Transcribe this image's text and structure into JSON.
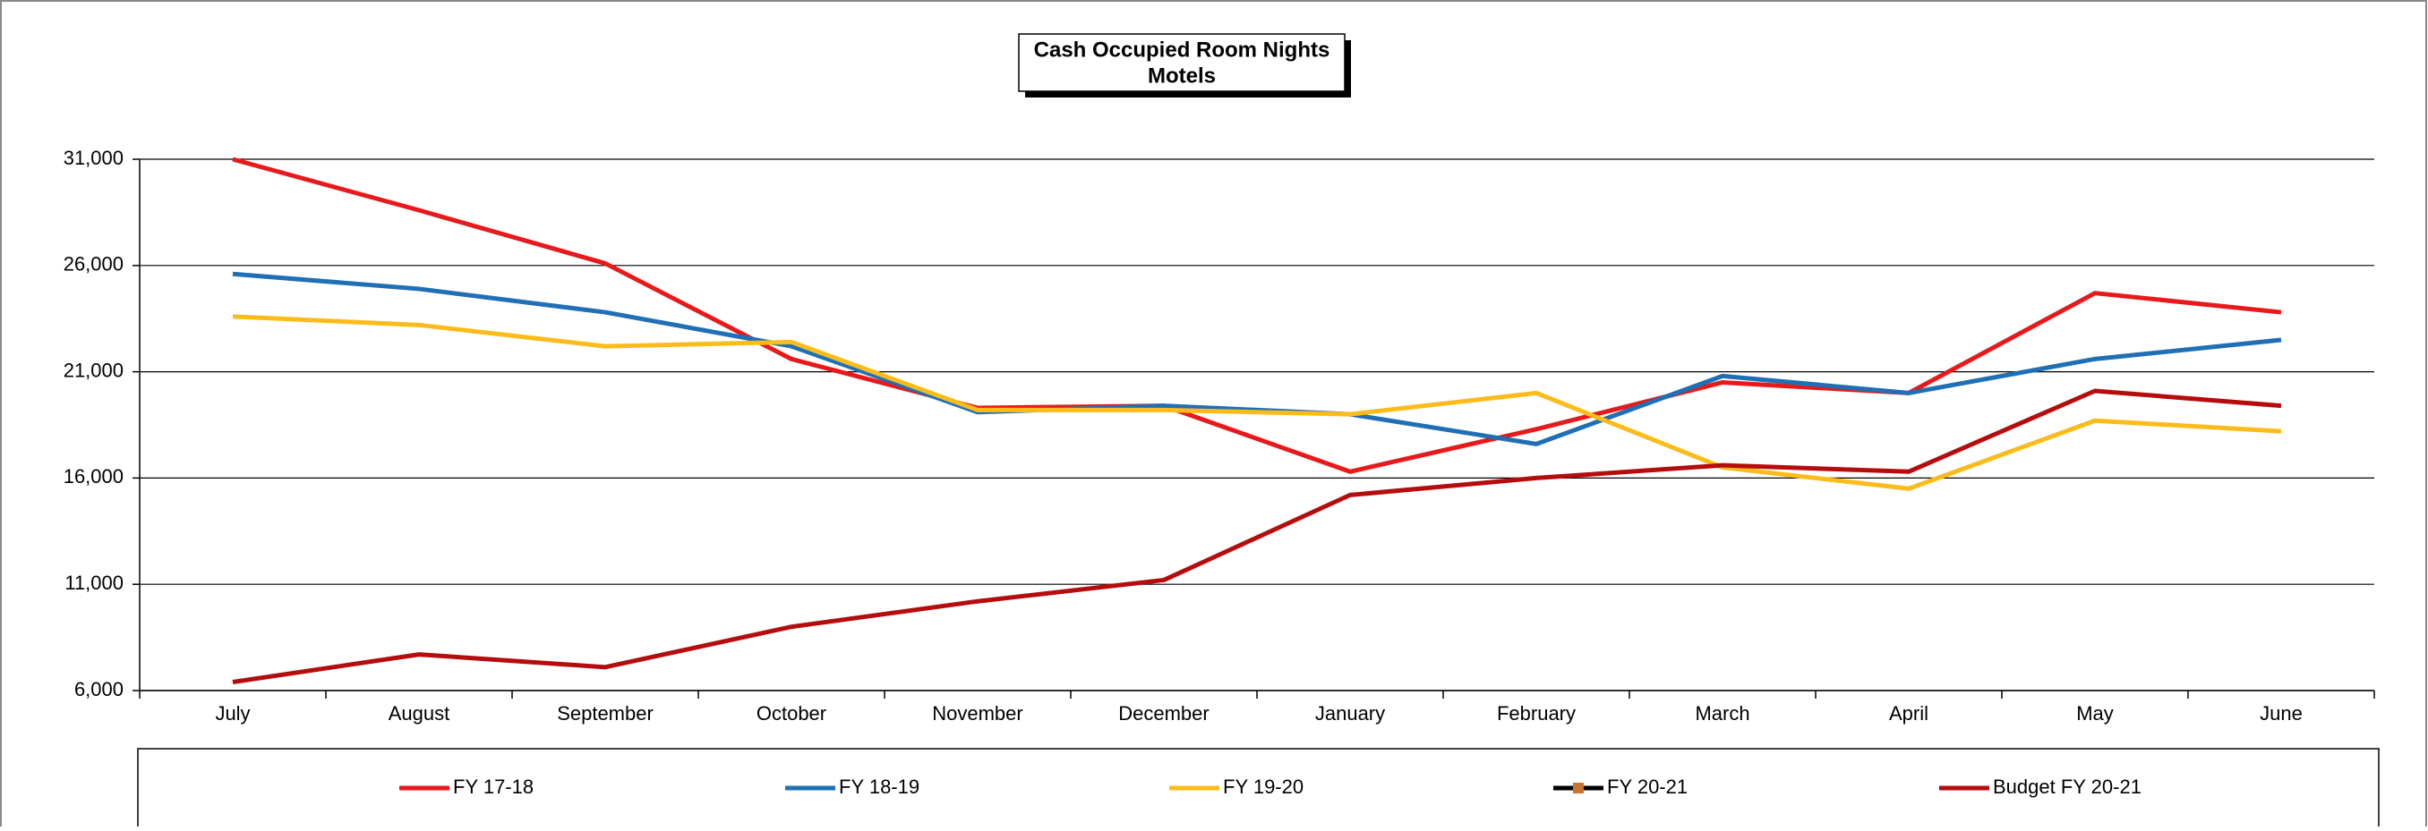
{
  "chart_data": {
    "type": "line",
    "title": "Cash Occupied Room Nights",
    "subtitle": "Motels",
    "categories": [
      "July",
      "August",
      "September",
      "October",
      "November",
      "December",
      "January",
      "February",
      "March",
      "April",
      "May",
      "June"
    ],
    "series": [
      {
        "name": "FY 17-18",
        "color": "#e8191a",
        "values": [
          31000,
          28600,
          26100,
          21600,
          19300,
          19400,
          16300,
          18300,
          20500,
          20000,
          24700,
          23800
        ]
      },
      {
        "name": "FY 18-19",
        "color": "#1f6fb5",
        "values": [
          25600,
          24900,
          23800,
          22200,
          19100,
          19400,
          19000,
          17600,
          20800,
          20000,
          21600,
          22500
        ]
      },
      {
        "name": "FY 19-20",
        "color": "#fbbc1a",
        "values": [
          23600,
          23200,
          22200,
          22400,
          19200,
          19200,
          19000,
          20000,
          16500,
          15500,
          18700,
          18200
        ]
      },
      {
        "name": "FY 20-21",
        "color": "#000000",
        "marker_color": "#c87533",
        "values": [
          null,
          null,
          null,
          null,
          null,
          null,
          null,
          null,
          null,
          null,
          null,
          null
        ]
      },
      {
        "name": "Budget FY 20-21",
        "color": "#b50d0d",
        "values": [
          6400,
          7700,
          7100,
          9000,
          10200,
          11200,
          15200,
          16000,
          16600,
          16300,
          20100,
          19400
        ]
      }
    ],
    "ylim": [
      6000,
      31000
    ],
    "yticks": [
      {
        "value": 6000,
        "label": "6,000"
      },
      {
        "value": 11000,
        "label": "11,000"
      },
      {
        "value": 16000,
        "label": "16,000"
      },
      {
        "value": 21000,
        "label": "21,000"
      },
      {
        "value": 26000,
        "label": "26,000"
      },
      {
        "value": 31000,
        "label": "31,000"
      }
    ],
    "grid": true,
    "legend": "bottom"
  }
}
